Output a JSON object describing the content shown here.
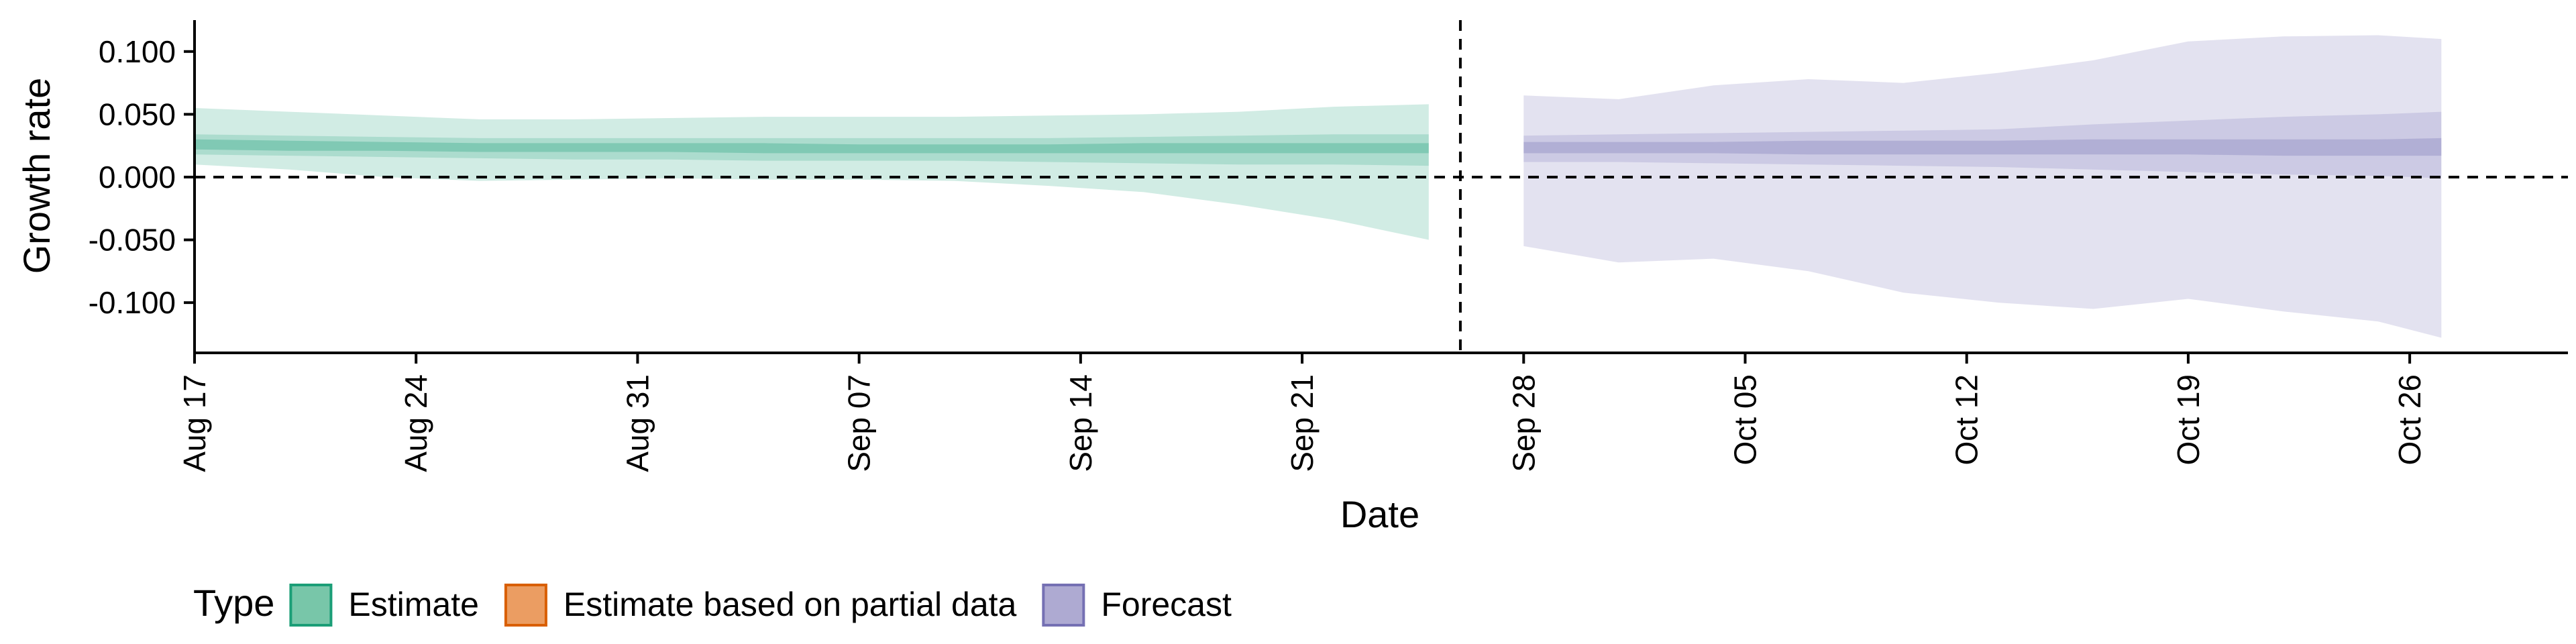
{
  "chart_data": {
    "type": "area",
    "title": "",
    "xlabel": "Date",
    "ylabel": "Growth rate",
    "ylim": [
      -0.14,
      0.125
    ],
    "grid": false,
    "x_start": "2020-08-17",
    "x_end": "2020-10-31",
    "x_ticks": [
      {
        "date": "2020-08-17",
        "label": "Aug 17"
      },
      {
        "date": "2020-08-24",
        "label": "Aug 24"
      },
      {
        "date": "2020-08-31",
        "label": "Aug 31"
      },
      {
        "date": "2020-09-07",
        "label": "Sep 07"
      },
      {
        "date": "2020-09-14",
        "label": "Sep 14"
      },
      {
        "date": "2020-09-21",
        "label": "Sep 21"
      },
      {
        "date": "2020-09-28",
        "label": "Sep 28"
      },
      {
        "date": "2020-10-05",
        "label": "Oct 05"
      },
      {
        "date": "2020-10-12",
        "label": "Oct 12"
      },
      {
        "date": "2020-10-19",
        "label": "Oct 19"
      },
      {
        "date": "2020-10-26",
        "label": "Oct 26"
      }
    ],
    "y_ticks": [
      {
        "value": 0.1,
        "label": "0.100"
      },
      {
        "value": 0.05,
        "label": "0.050"
      },
      {
        "value": 0.0,
        "label": "0.000"
      },
      {
        "value": -0.05,
        "label": "-0.050"
      },
      {
        "value": -0.1,
        "label": "-0.100"
      }
    ],
    "reference_lines": {
      "horizontal_y": 0.0,
      "vertical_date": "2020-09-26"
    },
    "legend": {
      "position": "bottom-left",
      "title": "Type",
      "entries": [
        {
          "label": "Estimate",
          "fill": "#78c6a9",
          "stroke": "#1b9e77"
        },
        {
          "label": "Estimate based on partial data",
          "fill": "#eb9d62",
          "stroke": "#d95f02"
        },
        {
          "label": "Forecast",
          "fill": "#aeaad2",
          "stroke": "#7570b3"
        }
      ]
    },
    "series": [
      {
        "name": "Estimate",
        "color": "#1b9e77",
        "dates": [
          "2020-08-17",
          "2020-08-20",
          "2020-08-23",
          "2020-08-26",
          "2020-08-29",
          "2020-09-01",
          "2020-09-04",
          "2020-09-07",
          "2020-09-10",
          "2020-09-13",
          "2020-09-16",
          "2020-09-19",
          "2020-09-22",
          "2020-09-25"
        ],
        "upper90": [
          0.055,
          0.052,
          0.049,
          0.046,
          0.046,
          0.047,
          0.048,
          0.048,
          0.048,
          0.049,
          0.05,
          0.052,
          0.056,
          0.058
        ],
        "upper50": [
          0.034,
          0.033,
          0.032,
          0.031,
          0.031,
          0.031,
          0.031,
          0.031,
          0.031,
          0.031,
          0.032,
          0.033,
          0.034,
          0.034
        ],
        "upper20": [
          0.03,
          0.029,
          0.028,
          0.027,
          0.027,
          0.027,
          0.027,
          0.026,
          0.026,
          0.026,
          0.027,
          0.027,
          0.027,
          0.027
        ],
        "lower20": [
          0.022,
          0.021,
          0.021,
          0.02,
          0.02,
          0.02,
          0.019,
          0.019,
          0.019,
          0.019,
          0.019,
          0.019,
          0.019,
          0.019
        ],
        "lower50": [
          0.018,
          0.017,
          0.016,
          0.015,
          0.014,
          0.014,
          0.013,
          0.013,
          0.013,
          0.012,
          0.011,
          0.01,
          0.01,
          0.009
        ],
        "lower90": [
          0.01,
          0.006,
          0.0,
          -0.003,
          -0.002,
          -0.001,
          -0.002,
          -0.002,
          -0.003,
          -0.007,
          -0.012,
          -0.022,
          -0.034,
          -0.05
        ]
      },
      {
        "name": "Forecast",
        "color": "#7570b3",
        "dates": [
          "2020-09-28",
          "2020-10-01",
          "2020-10-04",
          "2020-10-07",
          "2020-10-10",
          "2020-10-13",
          "2020-10-16",
          "2020-10-19",
          "2020-10-22",
          "2020-10-25",
          "2020-10-27"
        ],
        "upper90": [
          0.065,
          0.062,
          0.073,
          0.078,
          0.075,
          0.083,
          0.093,
          0.108,
          0.112,
          0.113,
          0.11
        ],
        "upper50": [
          0.033,
          0.034,
          0.035,
          0.036,
          0.037,
          0.038,
          0.042,
          0.045,
          0.048,
          0.05,
          0.052
        ],
        "upper20": [
          0.028,
          0.028,
          0.028,
          0.029,
          0.029,
          0.029,
          0.03,
          0.03,
          0.03,
          0.03,
          0.031
        ],
        "lower20": [
          0.019,
          0.019,
          0.019,
          0.018,
          0.018,
          0.018,
          0.018,
          0.018,
          0.017,
          0.017,
          0.017
        ],
        "lower50": [
          0.012,
          0.012,
          0.011,
          0.01,
          0.009,
          0.008,
          0.006,
          0.004,
          0.002,
          0.001,
          -0.001
        ],
        "lower90": [
          -0.055,
          -0.068,
          -0.065,
          -0.075,
          -0.092,
          -0.1,
          -0.105,
          -0.097,
          -0.107,
          -0.115,
          -0.128
        ]
      }
    ]
  }
}
